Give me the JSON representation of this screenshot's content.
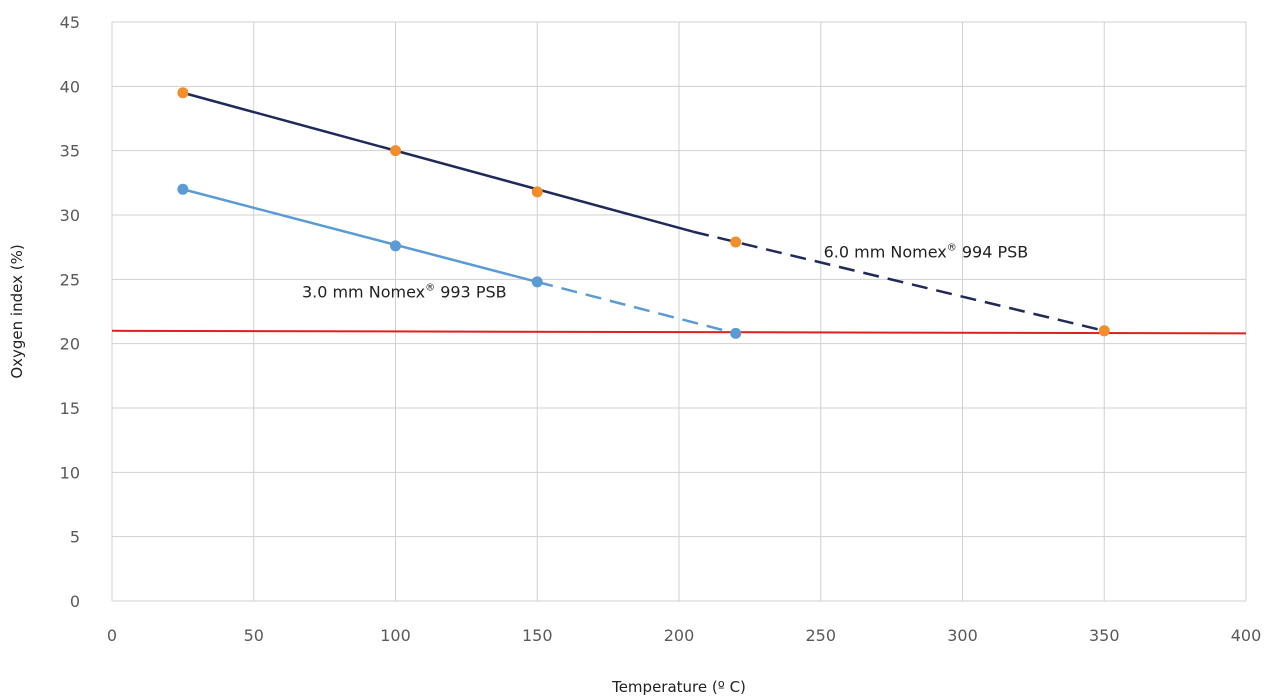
{
  "chart_data": {
    "type": "line",
    "xlabel": "Temperature (º C)",
    "ylabel": "Oxygen index (%)",
    "xlim": [
      0,
      400
    ],
    "ylim": [
      0,
      45
    ],
    "xticks": [
      "0",
      "50",
      "100",
      "150",
      "200",
      "250",
      "300",
      "350",
      "400"
    ],
    "yticks": [
      "0",
      "5",
      "10",
      "15",
      "20",
      "25",
      "30",
      "35",
      "40",
      "45"
    ],
    "grid": true,
    "series": [
      {
        "name": "6.0 mm Nomex® 994 PSB",
        "color": "#1f2a5a",
        "marker_color": "#f28e2b",
        "points": [
          {
            "x": 25,
            "y": 39.5
          },
          {
            "x": 100,
            "y": 35
          },
          {
            "x": 150,
            "y": 31.8
          },
          {
            "x": 220,
            "y": 27.9
          },
          {
            "x": 350,
            "y": 21
          }
        ],
        "solid_segment": {
          "x": [
            25,
            205
          ],
          "y": [
            39.5,
            28.7
          ]
        },
        "dashed_segment": {
          "x": [
            205,
            350
          ],
          "y": [
            28.7,
            21
          ]
        }
      },
      {
        "name": "3.0 mm Nomex® 993 PSB",
        "color": "#5b9bd5",
        "marker_color": "#5b9bd5",
        "points": [
          {
            "x": 25,
            "y": 32
          },
          {
            "x": 100,
            "y": 27.6
          },
          {
            "x": 150,
            "y": 24.8
          },
          {
            "x": 220,
            "y": 20.8
          }
        ],
        "solid_segment": {
          "x": [
            25,
            150
          ],
          "y": [
            32,
            24.8
          ]
        },
        "dashed_segment": {
          "x": [
            150,
            220
          ],
          "y": [
            24.8,
            20.8
          ]
        }
      },
      {
        "name": "",
        "color": "#e02020",
        "line": {
          "x": [
            0,
            400
          ],
          "y": [
            21,
            20.8
          ]
        }
      }
    ],
    "annotations": [
      {
        "text_main": "6.0 mm Nomex",
        "sup": "®",
        "text_rest": " 994 PSB",
        "x": 251,
        "y": 26.7
      },
      {
        "text_main": "3.0 mm Nomex",
        "sup": "®",
        "text_rest": " 993 PSB",
        "x": 67,
        "y": 23.6
      }
    ]
  }
}
